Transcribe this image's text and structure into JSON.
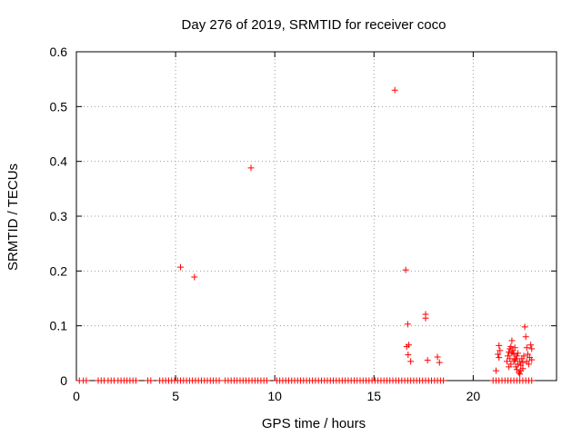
{
  "chart_data": {
    "type": "scatter",
    "title": "Day 276 of 2019, SRMTID for receiver coco",
    "xlabel": "GPS time / hours",
    "ylabel": "SRMTID / TECUs",
    "xlim": [
      0,
      24.2
    ],
    "ylim": [
      0,
      0.6
    ],
    "xticks": [
      0,
      5,
      10,
      15,
      20
    ],
    "xtick_labels": [
      "0",
      "5",
      "10",
      "15",
      "20"
    ],
    "yticks": [
      0,
      0.1,
      0.2,
      0.3,
      0.4,
      0.5,
      0.6
    ],
    "ytick_labels": [
      "0",
      "0.1",
      "0.2",
      "0.3",
      "0.4",
      "0.5",
      "0.6"
    ],
    "grid": true,
    "marker": "+",
    "color": "#ff0000",
    "series": [
      {
        "name": "SRMTID",
        "points": [
          [
            5.25,
            0.207
          ],
          [
            5.95,
            0.189
          ],
          [
            8.8,
            0.388
          ],
          [
            16.05,
            0.53
          ],
          [
            16.6,
            0.202
          ],
          [
            16.7,
            0.103
          ],
          [
            16.65,
            0.062
          ],
          [
            16.75,
            0.065
          ],
          [
            16.72,
            0.047
          ],
          [
            16.85,
            0.035
          ],
          [
            17.6,
            0.121
          ],
          [
            17.6,
            0.114
          ],
          [
            17.7,
            0.037
          ],
          [
            18.2,
            0.043
          ],
          [
            18.3,
            0.033
          ],
          [
            21.15,
            0.018
          ],
          [
            21.3,
            0.064
          ],
          [
            21.25,
            0.048
          ],
          [
            21.35,
            0.055
          ],
          [
            21.3,
            0.042
          ],
          [
            21.7,
            0.035
          ],
          [
            21.75,
            0.045
          ],
          [
            21.8,
            0.052
          ],
          [
            21.85,
            0.058
          ],
          [
            21.9,
            0.062
          ],
          [
            21.95,
            0.073
          ],
          [
            21.85,
            0.04
          ],
          [
            21.9,
            0.03
          ],
          [
            22.0,
            0.055
          ],
          [
            22.05,
            0.048
          ],
          [
            22.1,
            0.06
          ],
          [
            22.1,
            0.038
          ],
          [
            22.15,
            0.025
          ],
          [
            22.2,
            0.02
          ],
          [
            22.2,
            0.045
          ],
          [
            22.25,
            0.03
          ],
          [
            22.3,
            0.015
          ],
          [
            22.35,
            0.035
          ],
          [
            22.35,
            0.012
          ],
          [
            22.4,
            0.028
          ],
          [
            22.45,
            0.04
          ],
          [
            22.5,
            0.022
          ],
          [
            22.5,
            0.033
          ],
          [
            22.55,
            0.045
          ],
          [
            22.6,
            0.098
          ],
          [
            22.65,
            0.08
          ],
          [
            22.7,
            0.06
          ],
          [
            22.7,
            0.035
          ],
          [
            22.75,
            0.048
          ],
          [
            22.8,
            0.03
          ],
          [
            22.85,
            0.042
          ],
          [
            22.9,
            0.065
          ],
          [
            22.95,
            0.058
          ],
          [
            22.95,
            0.038
          ],
          [
            21.95,
            0.05
          ],
          [
            22.05,
            0.035
          ],
          [
            21.8,
            0.025
          ],
          [
            22.15,
            0.04
          ],
          [
            22.25,
            0.05
          ],
          [
            22.4,
            0.018
          ]
        ],
        "zero_points_x": [
          0.15,
          0.35,
          0.5,
          1.1,
          1.25,
          1.4,
          1.6,
          1.75,
          1.9,
          2.1,
          2.25,
          2.4,
          2.55,
          2.7,
          2.85,
          3.0,
          3.6,
          3.75,
          4.2,
          4.35,
          4.5,
          4.65,
          4.8,
          4.95,
          5.1,
          5.25,
          5.4,
          5.55,
          5.7,
          5.85,
          6.0,
          6.15,
          6.3,
          6.45,
          6.6,
          6.75,
          6.9,
          7.05,
          7.2,
          7.5,
          7.65,
          7.8,
          7.95,
          8.1,
          8.25,
          8.4,
          8.55,
          8.7,
          8.85,
          9.0,
          9.15,
          9.3,
          9.45,
          9.6,
          10.1,
          10.25,
          10.4,
          10.55,
          10.7,
          10.85,
          11.0,
          11.15,
          11.3,
          11.45,
          11.6,
          11.75,
          11.9,
          12.05,
          12.2,
          12.35,
          12.5,
          12.65,
          12.8,
          12.95,
          13.1,
          13.25,
          13.4,
          13.55,
          13.7,
          13.85,
          14.0,
          14.15,
          14.3,
          14.45,
          14.6,
          14.75,
          14.9,
          15.05,
          15.2,
          15.35,
          15.5,
          15.65,
          15.8,
          15.95,
          16.1,
          16.25,
          16.4,
          16.55,
          16.7,
          16.85,
          17.0,
          17.15,
          17.3,
          17.45,
          17.6,
          17.75,
          17.9,
          18.05,
          18.2,
          18.35,
          18.5,
          21.0,
          21.15,
          21.3,
          21.45,
          21.6,
          21.75,
          21.9,
          22.05,
          22.2,
          22.35,
          22.5,
          22.65,
          22.8,
          22.95
        ]
      }
    ]
  }
}
